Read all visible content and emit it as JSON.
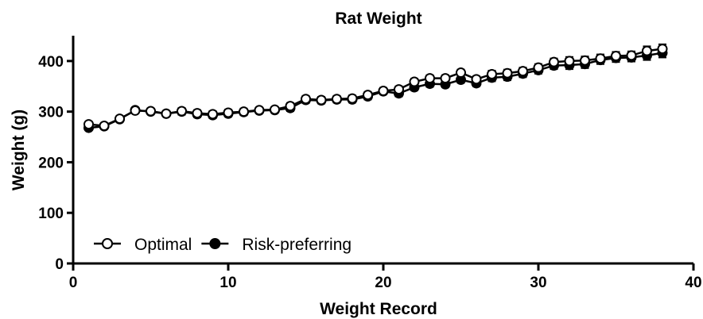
{
  "chart_data": {
    "type": "line",
    "title": "Rat Weight",
    "xlabel": "Weight Record",
    "ylabel": "Weight (g)",
    "xlim": [
      0,
      40
    ],
    "ylim": [
      0,
      450
    ],
    "xticks": [
      0,
      10,
      20,
      30,
      40
    ],
    "yticks": [
      0,
      100,
      200,
      300,
      400
    ],
    "grid": false,
    "legend_position": "bottom-left",
    "x": [
      1,
      2,
      3,
      4,
      5,
      6,
      7,
      8,
      9,
      10,
      11,
      12,
      13,
      14,
      15,
      16,
      17,
      18,
      19,
      20,
      21,
      22,
      23,
      24,
      25,
      26,
      27,
      28,
      29,
      30,
      31,
      32,
      33,
      34,
      35,
      36,
      37,
      38
    ],
    "series": [
      {
        "name": "Optimal",
        "marker": "open-circle",
        "color": "#000000",
        "values": [
          275,
          272,
          286,
          302,
          301,
          296,
          301,
          297,
          295,
          298,
          300,
          303,
          304,
          311,
          325,
          323,
          325,
          326,
          333,
          341,
          344,
          359,
          366,
          366,
          377,
          364,
          374,
          376,
          380,
          387,
          398,
          400,
          401,
          405,
          410,
          411,
          420,
          424
        ],
        "error": [
          4,
          4,
          4,
          5,
          5,
          5,
          6,
          6,
          6,
          6,
          6,
          5,
          5,
          6,
          6,
          6,
          6,
          6,
          6,
          6,
          6,
          6,
          6,
          6,
          6,
          6,
          7,
          7,
          7,
          7,
          7,
          8,
          8,
          8,
          8,
          8,
          9,
          9
        ]
      },
      {
        "name": "Risk-preferring",
        "marker": "filled-circle",
        "color": "#000000",
        "values": [
          268,
          271,
          285,
          303,
          300,
          296,
          300,
          295,
          293,
          296,
          299,
          302,
          303,
          307,
          323,
          322,
          324,
          324,
          330,
          340,
          336,
          348,
          355,
          354,
          363,
          356,
          367,
          369,
          375,
          382,
          391,
          392,
          394,
          402,
          406,
          407,
          411,
          416
        ],
        "error": [
          4,
          4,
          4,
          5,
          5,
          5,
          6,
          6,
          6,
          6,
          6,
          5,
          5,
          6,
          6,
          6,
          6,
          6,
          6,
          6,
          6,
          6,
          6,
          6,
          6,
          6,
          7,
          7,
          7,
          7,
          7,
          8,
          8,
          8,
          8,
          8,
          9,
          9
        ]
      }
    ]
  }
}
